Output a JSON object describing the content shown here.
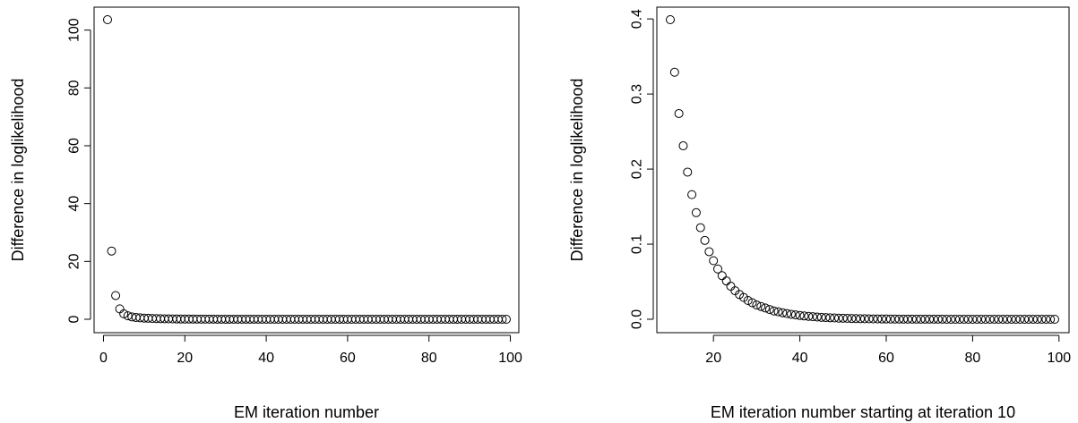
{
  "chart_data": [
    {
      "type": "scatter",
      "xlabel": "EM iteration number",
      "ylabel": "Difference in loglikelihood",
      "xlim": [
        1,
        99
      ],
      "ylim": [
        0,
        103.6
      ],
      "xticks": [
        0,
        20,
        40,
        60,
        80,
        100
      ],
      "yticks": [
        0,
        20,
        40,
        60,
        80,
        100
      ],
      "point_style": "open-circle",
      "x": [
        1,
        2,
        3,
        4,
        5,
        6,
        7,
        8,
        9,
        10,
        11,
        12,
        13,
        14,
        15,
        16,
        17,
        18,
        19,
        20,
        21,
        22,
        23,
        24,
        25,
        26,
        27,
        28,
        29,
        30,
        31,
        32,
        33,
        34,
        35,
        36,
        37,
        38,
        39,
        40,
        41,
        42,
        43,
        44,
        45,
        46,
        47,
        48,
        49,
        50,
        51,
        52,
        53,
        54,
        55,
        56,
        57,
        58,
        59,
        60,
        61,
        62,
        63,
        64,
        65,
        66,
        67,
        68,
        69,
        70,
        71,
        72,
        73,
        74,
        75,
        76,
        77,
        78,
        79,
        80,
        81,
        82,
        83,
        84,
        85,
        86,
        87,
        88,
        89,
        90,
        91,
        92,
        93,
        94,
        95,
        96,
        97,
        98,
        99
      ],
      "y": [
        103.6,
        23.6,
        8.2,
        3.6,
        1.9,
        1.2,
        0.8,
        0.6,
        0.5,
        0.4,
        0.33,
        0.27,
        0.23,
        0.2,
        0.17,
        0.14,
        0.12,
        0.1,
        0.09,
        0.08,
        0.07,
        0.06,
        0.05,
        0.04,
        0.035,
        0.03,
        0.025,
        0.02,
        0.018,
        0.015,
        0.013,
        0.011,
        0.01,
        0.008,
        0.007,
        0.006,
        0.005,
        0.005,
        0.004,
        0.004,
        0.003,
        0.003,
        0.003,
        0.002,
        0.002,
        0.002,
        0.002,
        0.001,
        0.001,
        0.001,
        0.001,
        0.001,
        0.001,
        0,
        0,
        0,
        0,
        0,
        0,
        0,
        0,
        0,
        0,
        0,
        0,
        0,
        0,
        0,
        0,
        0,
        0,
        0,
        0,
        0,
        0,
        0,
        0,
        0,
        0,
        0,
        0,
        0,
        0,
        0,
        0,
        0,
        0,
        0,
        0,
        0,
        0,
        0,
        0,
        0,
        0,
        0,
        0,
        0,
        0
      ]
    },
    {
      "type": "scatter",
      "xlabel": "EM iteration number starting at iteration 10",
      "ylabel": "Difference in loglikelihood",
      "xlim": [
        10,
        99
      ],
      "ylim": [
        0,
        0.399
      ],
      "xticks": [
        20,
        40,
        60,
        80,
        100
      ],
      "yticks": [
        0.0,
        0.1,
        0.2,
        0.3,
        0.4
      ],
      "ytick_labels": [
        "0.0",
        "0.1",
        "0.2",
        "0.3",
        "0.4"
      ],
      "point_style": "open-circle",
      "x": [
        10,
        11,
        12,
        13,
        14,
        15,
        16,
        17,
        18,
        19,
        20,
        21,
        22,
        23,
        24,
        25,
        26,
        27,
        28,
        29,
        30,
        31,
        32,
        33,
        34,
        35,
        36,
        37,
        38,
        39,
        40,
        41,
        42,
        43,
        44,
        45,
        46,
        47,
        48,
        49,
        50,
        51,
        52,
        53,
        54,
        55,
        56,
        57,
        58,
        59,
        60,
        61,
        62,
        63,
        64,
        65,
        66,
        67,
        68,
        69,
        70,
        71,
        72,
        73,
        74,
        75,
        76,
        77,
        78,
        79,
        80,
        81,
        82,
        83,
        84,
        85,
        86,
        87,
        88,
        89,
        90,
        91,
        92,
        93,
        94,
        95,
        96,
        97,
        98,
        99
      ],
      "y": [
        0.399,
        0.329,
        0.274,
        0.231,
        0.196,
        0.166,
        0.142,
        0.122,
        0.105,
        0.09,
        0.078,
        0.067,
        0.058,
        0.051,
        0.044,
        0.038,
        0.033,
        0.029,
        0.025,
        0.022,
        0.019,
        0.017,
        0.015,
        0.013,
        0.011,
        0.01,
        0.0087,
        0.0076,
        0.0066,
        0.0058,
        0.0051,
        0.0044,
        0.0039,
        0.0034,
        0.003,
        0.0026,
        0.0023,
        0.002,
        0.0018,
        0.0015,
        0.0014,
        0.0012,
        0.001,
        0.0009,
        0.0008,
        0.0007,
        0.0006,
        0.0005,
        0.0005,
        0.0004,
        0.0004,
        0.0003,
        0.0003,
        0.0002,
        0.0002,
        0.0002,
        0.0002,
        0.0001,
        0.0001,
        0.0001,
        0.0001,
        0.0001,
        0.0001,
        0.0001,
        0,
        0,
        0,
        0,
        0,
        0,
        0,
        0,
        0,
        0,
        0,
        0,
        0,
        0,
        0,
        0,
        0,
        0,
        0,
        0,
        0,
        0,
        0,
        0,
        0,
        0
      ]
    }
  ]
}
